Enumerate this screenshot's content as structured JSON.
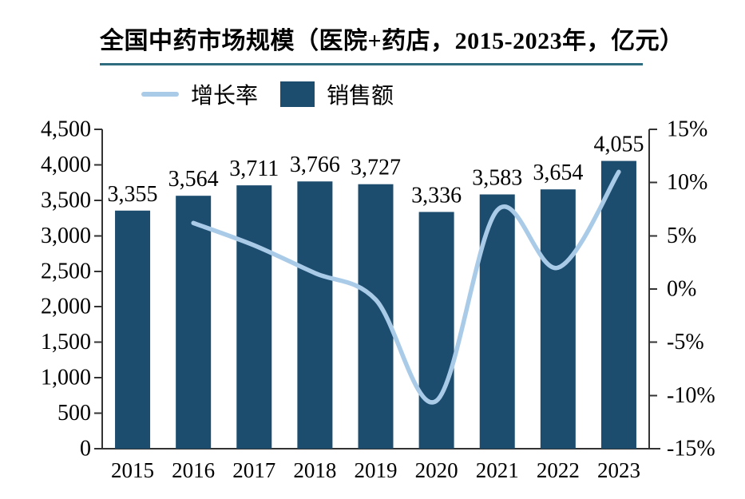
{
  "title": "全国中药市场规模（医院+药店，2015-2023年，亿元）",
  "legend": {
    "items": [
      {
        "label": "增长率",
        "swatch": "line-swatch"
      },
      {
        "label": "销售额",
        "swatch": "box-swatch"
      }
    ]
  },
  "colors": {
    "bar": "#1c4c6e",
    "line": "#a9cbe8",
    "title_underline": "#2e6d80",
    "axis": "#333333",
    "label_text": "#000000"
  },
  "chart_data": {
    "type": "bar",
    "subtype": "combo-bar-line",
    "title": "全国中药市场规模（医院+药店，2015-2023年，亿元）",
    "categories": [
      "2015",
      "2016",
      "2017",
      "2018",
      "2019",
      "2020",
      "2021",
      "2022",
      "2023"
    ],
    "series": [
      {
        "name": "销售额",
        "type": "bar",
        "axis": "left",
        "values": [
          3355,
          3564,
          3711,
          3766,
          3727,
          3336,
          3583,
          3654,
          4055
        ],
        "labels": [
          "3,355",
          "3,564",
          "3,711",
          "3,766",
          "3,727",
          "3,336",
          "3,583",
          "3,654",
          "4,055"
        ]
      },
      {
        "name": "增长率",
        "type": "line",
        "axis": "right",
        "values_percent": [
          null,
          6.2,
          4.1,
          1.5,
          -1.0,
          -10.5,
          7.4,
          2.0,
          11.0
        ]
      }
    ],
    "left_axis": {
      "min": 0,
      "max": 4500,
      "step": 500,
      "tick_labels": [
        "4,500",
        "4,000",
        "3,500",
        "3,000",
        "2,500",
        "2,000",
        "1,500",
        "1,000",
        "500",
        "0"
      ]
    },
    "right_axis": {
      "min": -15,
      "max": 15,
      "step": 5,
      "tick_labels": [
        "15%",
        "10%",
        "5%",
        "0%",
        "-5%",
        "-10%",
        "-15%"
      ]
    },
    "grid": false,
    "legend_position": "top-left",
    "xlabel": "",
    "ylabel_left": "亿元",
    "ylabel_right": "%"
  }
}
